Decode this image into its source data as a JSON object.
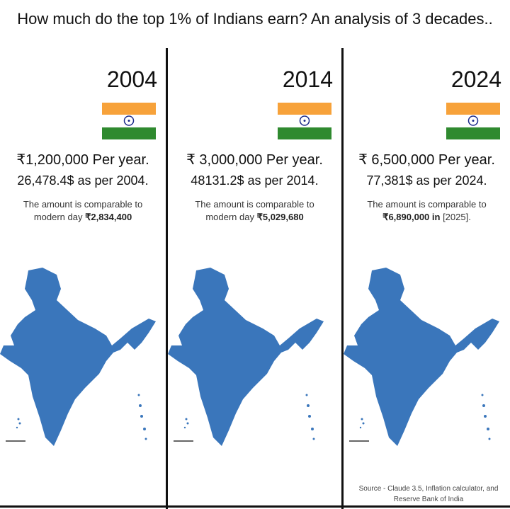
{
  "title": "How much do the top 1% of Indians earn? An analysis of 3 decades..",
  "colors": {
    "saffron": "#f7a23a",
    "green": "#2f8a2f",
    "map": "#3a76bb",
    "chakra": "#1a2a8a"
  },
  "panels": [
    {
      "year": "2004",
      "rupee": "₹1,200,000 Per year.",
      "usd": "26,478.4$ as per 2004.",
      "cmp_line1": "The amount is comparable to",
      "cmp_prefix": "modern day ",
      "cmp_value": "₹2,834,400",
      "cmp_suffix": ""
    },
    {
      "year": "2014",
      "rupee": "₹ 3,000,000 Per year.",
      "usd": "48131.2$ as per 2014.",
      "cmp_line1": "The amount is comparable to",
      "cmp_prefix": "modern day ",
      "cmp_value": "₹5,029,680",
      "cmp_suffix": ""
    },
    {
      "year": "2024",
      "rupee": "₹ 6,500,000 Per year.",
      "usd": "77,381$ as per 2024.",
      "cmp_line1": "The amount is comparable to",
      "cmp_prefix": "",
      "cmp_value": "₹6,890,000 in",
      "cmp_suffix": " [2025]."
    }
  ],
  "source": "Source - Claude 3.5, Inflation calculator, and Reserve Bank of India"
}
